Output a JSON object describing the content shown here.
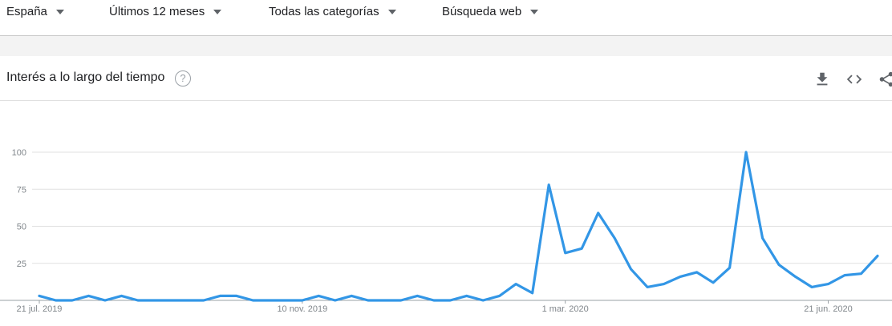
{
  "filters": {
    "location": "España",
    "period": "Últimos 12 meses",
    "category": "Todas las categorías",
    "search_type": "Búsqueda web"
  },
  "card": {
    "title": "Interés a lo largo del tiempo",
    "help_icon": "question-mark",
    "download_icon": "download-icon",
    "embed_icon": "embed-code-icon",
    "share_icon": "share-icon"
  },
  "colors": {
    "line": "#3296e6",
    "grid": "#e0e0e0",
    "axis_text": "#80868b"
  },
  "chart_data": {
    "type": "line",
    "title": "",
    "xlabel": "",
    "ylabel": "",
    "ylim": [
      0,
      100
    ],
    "yticks": [
      25,
      50,
      75,
      100
    ],
    "grid": true,
    "x_tick_labels": [
      "21 jul. 2019",
      "10 nov. 2019",
      "1 mar. 2020",
      "21 jun. 2020"
    ],
    "x_tick_positions": [
      0,
      16,
      32,
      48
    ],
    "series": [
      {
        "values": [
          3,
          0,
          0,
          3,
          0,
          3,
          0,
          0,
          0,
          0,
          0,
          3,
          3,
          0,
          0,
          0,
          0,
          3,
          0,
          3,
          0,
          0,
          0,
          3,
          0,
          0,
          3,
          0,
          3,
          11,
          5,
          78,
          32,
          35,
          59,
          42,
          21,
          9,
          11,
          16,
          19,
          12,
          22,
          100,
          42,
          24,
          16,
          9,
          11,
          17,
          18,
          30
        ]
      }
    ]
  }
}
